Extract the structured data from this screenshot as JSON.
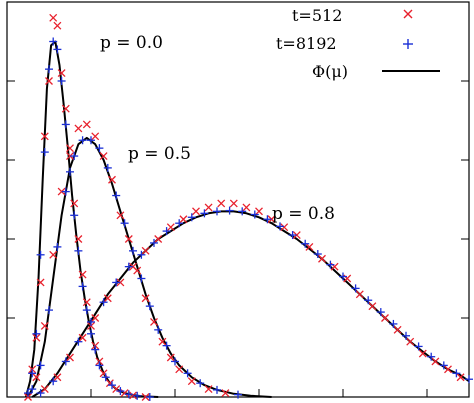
{
  "chart_data": {
    "type": "scatter",
    "title": "",
    "xlabel": "",
    "ylabel": "",
    "xlim": [
      0,
      11
    ],
    "ylim": [
      0,
      1.0
    ],
    "grid": false,
    "legend_placement": "top-right",
    "legend": [
      {
        "label": "t=512",
        "marker": "x",
        "color": "#e8212d"
      },
      {
        "label": "t=8192",
        "marker": "+",
        "color": "#1a2fd6"
      },
      {
        "label": "Φ(μ)",
        "marker": "line",
        "color": "#000000"
      }
    ],
    "annotations": [
      {
        "text": "p = 0.0",
        "x": 2.2,
        "y": 0.87
      },
      {
        "text": "p = 0.5",
        "x": 3.0,
        "y": 0.605
      },
      {
        "text": "p = 0.8",
        "x": 6.3,
        "y": 0.46
      }
    ],
    "series": [
      {
        "name": "p = 0.0",
        "curve": {
          "x": [
            0.45,
            0.55,
            0.65,
            0.75,
            0.85,
            0.95,
            1.05,
            1.15,
            1.25,
            1.35,
            1.45,
            1.55,
            1.65,
            1.75,
            1.85,
            1.95,
            2.05,
            2.15,
            2.3,
            2.45,
            2.6,
            2.8,
            3.0,
            3.2,
            3.4,
            3.6
          ],
          "y": [
            0.0,
            0.04,
            0.12,
            0.3,
            0.55,
            0.78,
            0.89,
            0.9,
            0.84,
            0.74,
            0.63,
            0.51,
            0.41,
            0.32,
            0.25,
            0.19,
            0.14,
            0.1,
            0.06,
            0.035,
            0.02,
            0.01,
            0.005,
            0.002,
            0.001,
            0.0
          ]
        },
        "t512": {
          "x": [
            0.5,
            0.6,
            0.7,
            0.8,
            0.9,
            1.0,
            1.1,
            1.2,
            1.3,
            1.4,
            1.5,
            1.6,
            1.7,
            1.8,
            1.9,
            2.0,
            2.1,
            2.2,
            2.3,
            2.45,
            2.6,
            2.8,
            3.0,
            3.3
          ],
          "y": [
            0.0,
            0.07,
            0.15,
            0.29,
            0.66,
            0.8,
            0.96,
            0.94,
            0.82,
            0.73,
            0.61,
            0.49,
            0.4,
            0.31,
            0.24,
            0.18,
            0.13,
            0.09,
            0.06,
            0.035,
            0.02,
            0.01,
            0.004,
            0.0
          ]
        },
        "t8192": {
          "x": [
            0.5,
            0.6,
            0.7,
            0.8,
            0.9,
            1.0,
            1.1,
            1.2,
            1.3,
            1.4,
            1.5,
            1.6,
            1.7,
            1.8,
            1.9,
            2.0,
            2.1,
            2.2,
            2.35,
            2.5,
            2.7,
            2.9,
            3.1,
            3.4
          ],
          "y": [
            0.01,
            0.06,
            0.16,
            0.36,
            0.62,
            0.83,
            0.9,
            0.88,
            0.8,
            0.69,
            0.57,
            0.46,
            0.37,
            0.28,
            0.22,
            0.16,
            0.12,
            0.08,
            0.05,
            0.03,
            0.015,
            0.007,
            0.003,
            0.0
          ]
        }
      },
      {
        "name": "p = 0.5",
        "curve": {
          "x": [
            0.5,
            0.7,
            0.9,
            1.1,
            1.3,
            1.5,
            1.7,
            1.9,
            2.1,
            2.3,
            2.5,
            2.7,
            2.9,
            3.1,
            3.3,
            3.5,
            3.7,
            3.9,
            4.1,
            4.4,
            4.7,
            5.0,
            5.4,
            5.8,
            6.3
          ],
          "y": [
            0.0,
            0.04,
            0.14,
            0.3,
            0.46,
            0.58,
            0.64,
            0.656,
            0.64,
            0.6,
            0.54,
            0.47,
            0.4,
            0.33,
            0.26,
            0.2,
            0.15,
            0.11,
            0.08,
            0.05,
            0.03,
            0.018,
            0.008,
            0.003,
            0.0
          ]
        },
        "t512": {
          "x": [
            0.7,
            0.9,
            1.1,
            1.3,
            1.5,
            1.7,
            1.9,
            2.1,
            2.3,
            2.5,
            2.7,
            2.9,
            3.1,
            3.3,
            3.5,
            3.7,
            3.9,
            4.1,
            4.4,
            4.8,
            5.2
          ],
          "y": [
            0.05,
            0.18,
            0.36,
            0.52,
            0.63,
            0.68,
            0.69,
            0.66,
            0.61,
            0.55,
            0.46,
            0.4,
            0.32,
            0.25,
            0.19,
            0.14,
            0.1,
            0.07,
            0.04,
            0.02,
            0.01
          ]
        },
        "t8192": {
          "x": [
            0.6,
            0.8,
            1.0,
            1.2,
            1.4,
            1.6,
            1.8,
            2.0,
            2.2,
            2.4,
            2.6,
            2.8,
            3.0,
            3.2,
            3.4,
            3.6,
            3.8,
            4.0,
            4.3,
            4.6,
            5.0,
            5.5
          ],
          "y": [
            0.02,
            0.08,
            0.22,
            0.38,
            0.52,
            0.61,
            0.65,
            0.65,
            0.63,
            0.58,
            0.51,
            0.44,
            0.37,
            0.3,
            0.23,
            0.17,
            0.13,
            0.09,
            0.06,
            0.035,
            0.018,
            0.006
          ]
        }
      },
      {
        "name": "p = 0.8",
        "curve": {
          "x": [
            0.6,
            0.9,
            1.2,
            1.5,
            1.8,
            2.1,
            2.4,
            2.7,
            3.0,
            3.3,
            3.6,
            3.9,
            4.2,
            4.5,
            4.8,
            5.1,
            5.4,
            5.7,
            6.0,
            6.3,
            6.6,
            6.9,
            7.2,
            7.5,
            7.8,
            8.1,
            8.4,
            8.7,
            9.0,
            9.3,
            9.6,
            9.9,
            10.2,
            10.5,
            10.8,
            11.0
          ],
          "y": [
            0.0,
            0.02,
            0.06,
            0.11,
            0.16,
            0.21,
            0.26,
            0.3,
            0.34,
            0.37,
            0.4,
            0.42,
            0.44,
            0.455,
            0.465,
            0.47,
            0.47,
            0.465,
            0.455,
            0.44,
            0.42,
            0.4,
            0.375,
            0.35,
            0.32,
            0.29,
            0.26,
            0.23,
            0.2,
            0.17,
            0.14,
            0.115,
            0.09,
            0.07,
            0.055,
            0.04
          ]
        },
        "t512": {
          "x": [
            0.9,
            1.2,
            1.5,
            1.8,
            2.1,
            2.4,
            2.7,
            3.0,
            3.3,
            3.6,
            3.9,
            4.2,
            4.5,
            4.8,
            5.1,
            5.4,
            5.7,
            6.0,
            6.3,
            6.6,
            6.9,
            7.2,
            7.5,
            7.8,
            8.1,
            8.4,
            8.7,
            9.0,
            9.3,
            9.6,
            9.9,
            10.2,
            10.5,
            10.8
          ],
          "y": [
            0.02,
            0.05,
            0.1,
            0.15,
            0.2,
            0.25,
            0.29,
            0.33,
            0.37,
            0.4,
            0.43,
            0.45,
            0.47,
            0.48,
            0.49,
            0.49,
            0.48,
            0.47,
            0.45,
            0.43,
            0.41,
            0.38,
            0.35,
            0.33,
            0.3,
            0.26,
            0.23,
            0.2,
            0.17,
            0.14,
            0.11,
            0.09,
            0.07,
            0.05
          ]
        },
        "t8192": {
          "x": [
            0.8,
            1.1,
            1.4,
            1.7,
            2.0,
            2.3,
            2.6,
            2.9,
            3.2,
            3.5,
            3.8,
            4.1,
            4.4,
            4.7,
            5.0,
            5.3,
            5.6,
            5.9,
            6.2,
            6.5,
            6.8,
            7.1,
            7.4,
            7.7,
            8.0,
            8.3,
            8.6,
            8.9,
            9.2,
            9.5,
            9.8,
            10.1,
            10.4,
            10.7,
            11.0
          ],
          "y": [
            0.01,
            0.04,
            0.09,
            0.14,
            0.19,
            0.24,
            0.29,
            0.33,
            0.36,
            0.39,
            0.42,
            0.44,
            0.455,
            0.465,
            0.47,
            0.472,
            0.47,
            0.462,
            0.45,
            0.432,
            0.41,
            0.388,
            0.362,
            0.335,
            0.305,
            0.275,
            0.245,
            0.215,
            0.185,
            0.155,
            0.128,
            0.102,
            0.08,
            0.06,
            0.045
          ]
        }
      }
    ]
  }
}
